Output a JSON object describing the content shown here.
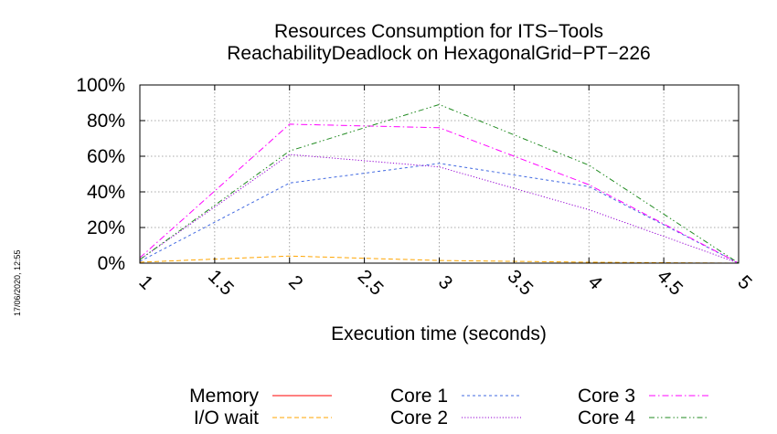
{
  "chart_data": {
    "type": "line",
    "title_lines": [
      "Resources Consumption for ITS−Tools",
      "ReachabilityDeadlock on HexagonalGrid−PT−226"
    ],
    "xlabel": "Execution time (seconds)",
    "ylabel": "",
    "xlim": [
      1,
      5
    ],
    "ylim": [
      0,
      100
    ],
    "x_ticks": [
      "1",
      "1.5",
      "2",
      "2.5",
      "3",
      "3.5",
      "4",
      "4.5",
      "5"
    ],
    "y_ticks": [
      "0%",
      "20%",
      "40%",
      "60%",
      "80%",
      "100%"
    ],
    "grid": true,
    "legend_position": "bottom",
    "timestamp": "17/06/2020, 12:55",
    "series": [
      {
        "name": "Memory",
        "color": "#ff0000",
        "dash": "solid",
        "x": [
          1,
          2,
          3,
          4,
          5
        ],
        "y": [
          0,
          0,
          0,
          0,
          0
        ]
      },
      {
        "name": "I/O wait",
        "color": "#ffa500",
        "dash": "dashed",
        "x": [
          1,
          2,
          3,
          4,
          5
        ],
        "y": [
          0.5,
          4,
          1.5,
          0.5,
          0
        ]
      },
      {
        "name": "Core 1",
        "color": "#4169e1",
        "dash": "dotted-dash",
        "x": [
          1,
          2,
          3,
          4,
          5
        ],
        "y": [
          1,
          45,
          56,
          43,
          0
        ]
      },
      {
        "name": "Core 2",
        "color": "#9400d3",
        "dash": "dotted",
        "x": [
          1,
          2,
          3,
          4,
          5
        ],
        "y": [
          2,
          61,
          54,
          30,
          0
        ]
      },
      {
        "name": "Core 3",
        "color": "#ff00ff",
        "dash": "dash-dot",
        "x": [
          1,
          2,
          3,
          4,
          5
        ],
        "y": [
          3,
          78,
          76,
          44,
          0
        ]
      },
      {
        "name": "Core 4",
        "color": "#228b22",
        "dash": "dash-dot-dot",
        "x": [
          1,
          2,
          3,
          4,
          5
        ],
        "y": [
          2,
          63,
          89,
          55,
          0
        ]
      }
    ]
  }
}
